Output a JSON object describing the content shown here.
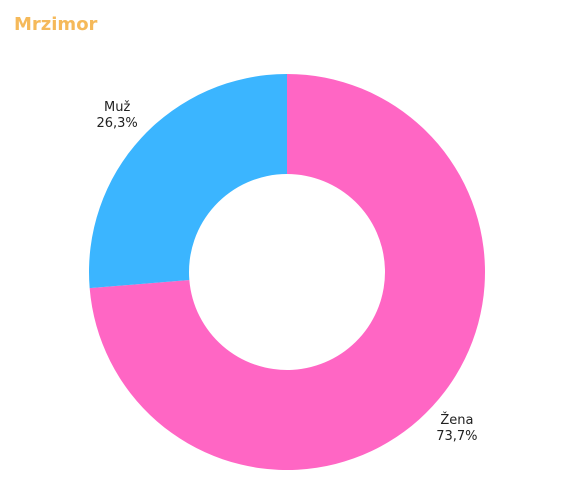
{
  "chart_data": {
    "type": "pie",
    "title": "Mrzimor",
    "categories": [
      "Žena",
      "Muž"
    ],
    "values": [
      73.7,
      26.3
    ],
    "value_labels": [
      "73,7%",
      "26,3%"
    ],
    "colors": [
      "#ff66c4",
      "#3bb5ff"
    ],
    "donut": true
  }
}
